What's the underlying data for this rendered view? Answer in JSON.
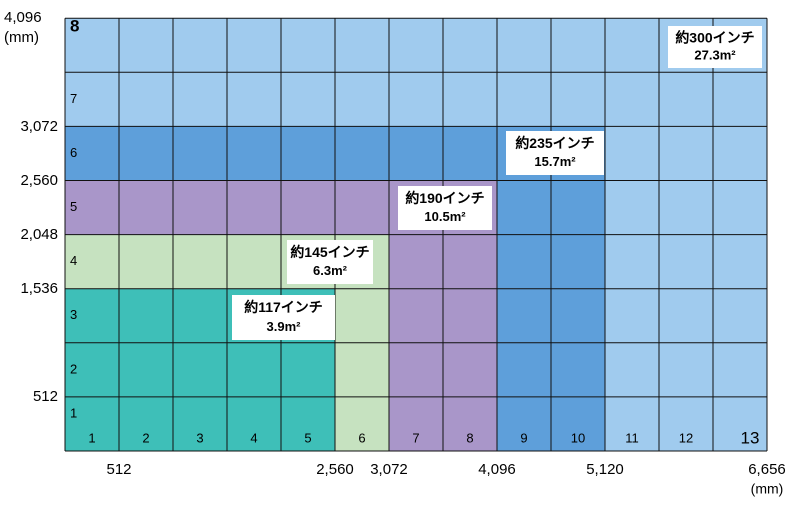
{
  "column_numbers": [
    "1",
    "2",
    "3",
    "4",
    "5",
    "6",
    "7",
    "8",
    "9",
    "10",
    "11",
    "12",
    "13"
  ],
  "row_numbers": [
    "1",
    "2",
    "3",
    "4",
    "5",
    "6",
    "7",
    "8"
  ],
  "y_axis": {
    "labels": [
      "512",
      "1,536",
      "2,048",
      "2,560",
      "3,072",
      "4,096"
    ],
    "unit": "(mm)"
  },
  "x_axis": {
    "labels": [
      "512",
      "2,560",
      "3,072",
      "4,096",
      "5,120",
      "6,656"
    ],
    "unit": "(mm)"
  },
  "sizes": [
    {
      "label": "約300インチ",
      "area": "27.3m²"
    },
    {
      "label": "約235インチ",
      "area": "15.7m²"
    },
    {
      "label": "約190インチ",
      "area": "10.5m²"
    },
    {
      "label": "約145インチ",
      "area": "6.3m²"
    },
    {
      "label": "約117インチ",
      "area": "3.9m²"
    }
  ]
}
